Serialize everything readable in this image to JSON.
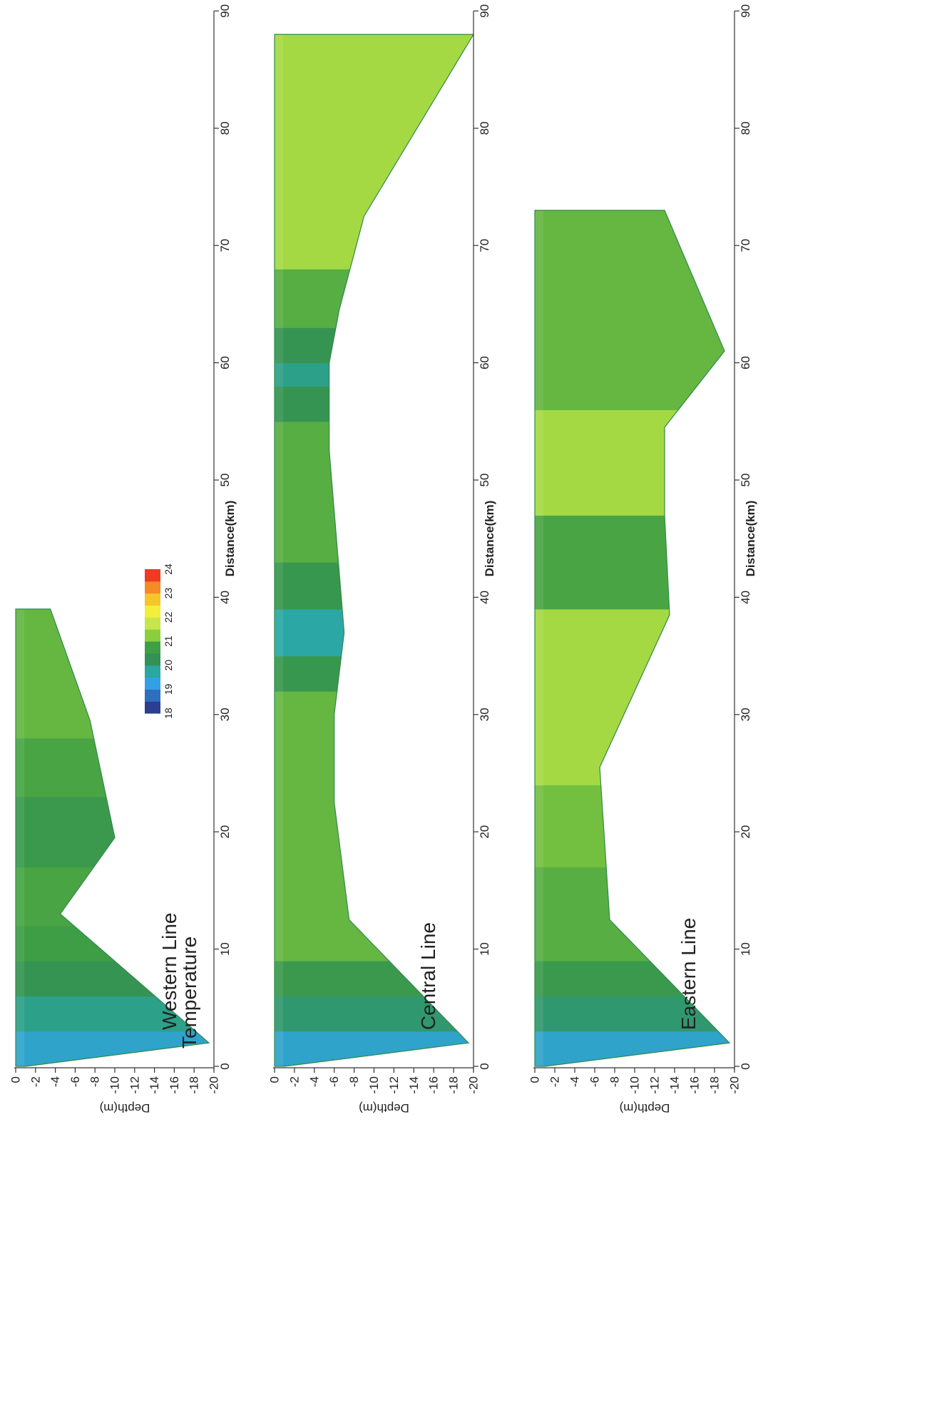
{
  "legend": {
    "title": "Temperature",
    "ticks": [
      18,
      19,
      20,
      21,
      22,
      23,
      24
    ],
    "colors": [
      "#2b3f8e",
      "#2f6fbf",
      "#33a0e6",
      "#2aa7a0",
      "#339155",
      "#3f9f45",
      "#8bcf3f",
      "#c7e64b",
      "#f2ef3a",
      "#f6c52a",
      "#f58a26",
      "#ee3b22"
    ]
  },
  "chart_data": [
    {
      "type": "heatmap",
      "title": "Western Line",
      "xlabel": "Distance(km)",
      "ylabel": "Depth(m)",
      "xlim": [
        0,
        90
      ],
      "ylim": [
        -20,
        0
      ],
      "xticks": [
        0,
        10,
        20,
        30,
        40,
        50,
        60,
        70,
        80,
        90
      ],
      "yticks": [
        0,
        -2,
        -4,
        -6,
        -8,
        -10,
        -12,
        -14,
        -16,
        -18,
        -20
      ],
      "bottom_profile": {
        "distance": [
          0,
          2,
          13,
          19.5,
          29.5,
          39
        ],
        "depth": [
          -1,
          -19.5,
          -4.5,
          -10,
          -7.5,
          -3.5
        ]
      },
      "bands": [
        {
          "from": 0,
          "to": 3,
          "temp": 19.3
        },
        {
          "from": 3,
          "to": 6,
          "temp": 19.8
        },
        {
          "from": 6,
          "to": 9,
          "temp": 20.3
        },
        {
          "from": 9,
          "to": 12,
          "temp": 20.7
        },
        {
          "from": 12,
          "to": 17,
          "temp": 20.8
        },
        {
          "from": 17,
          "to": 23,
          "temp": 20.5
        },
        {
          "from": 23,
          "to": 28,
          "temp": 20.8
        },
        {
          "from": 28,
          "to": 39,
          "temp": 21.0
        }
      ]
    },
    {
      "type": "heatmap",
      "title": "Central Line",
      "xlabel": "Distance(km)",
      "ylabel": "Depth(m)",
      "xlim": [
        0,
        90
      ],
      "ylim": [
        -20,
        0
      ],
      "xticks": [
        0,
        10,
        20,
        30,
        40,
        50,
        60,
        70,
        80,
        90
      ],
      "yticks": [
        0,
        -2,
        -4,
        -6,
        -8,
        -10,
        -12,
        -14,
        -16,
        -18,
        -20
      ],
      "bottom_profile": {
        "distance": [
          0,
          2,
          12.5,
          22.5,
          30,
          37,
          52.5,
          60,
          64.5,
          72.5,
          88
        ],
        "depth": [
          -1,
          -19.5,
          -7.5,
          -6,
          -6,
          -7,
          -5.5,
          -5.5,
          -6.5,
          -9,
          -20
        ]
      },
      "bands": [
        {
          "from": 0,
          "to": 3,
          "temp": 19.3
        },
        {
          "from": 3,
          "to": 6,
          "temp": 20.0
        },
        {
          "from": 6,
          "to": 9,
          "temp": 20.5
        },
        {
          "from": 9,
          "to": 32,
          "temp": 21.0
        },
        {
          "from": 32,
          "to": 35,
          "temp": 20.4
        },
        {
          "from": 35,
          "to": 39,
          "temp": 19.6
        },
        {
          "from": 39,
          "to": 43,
          "temp": 20.4
        },
        {
          "from": 43,
          "to": 55,
          "temp": 20.9
        },
        {
          "from": 55,
          "to": 58,
          "temp": 20.3
        },
        {
          "from": 58,
          "to": 60,
          "temp": 19.8
        },
        {
          "from": 60,
          "to": 63,
          "temp": 20.3
        },
        {
          "from": 63,
          "to": 68,
          "temp": 20.9
        },
        {
          "from": 68,
          "to": 88,
          "temp": 21.5
        }
      ]
    },
    {
      "type": "heatmap",
      "title": "Eastern Line",
      "xlabel": "Distance(km)",
      "ylabel": "Depth(m)",
      "xlim": [
        0,
        90
      ],
      "ylim": [
        -20,
        0
      ],
      "xticks": [
        0,
        10,
        20,
        30,
        40,
        50,
        60,
        70,
        80,
        90
      ],
      "yticks": [
        0,
        -2,
        -4,
        -6,
        -8,
        -10,
        -12,
        -14,
        -16,
        -18,
        -20
      ],
      "bottom_profile": {
        "distance": [
          0,
          2,
          12.5,
          25.5,
          38.5,
          47,
          54.5,
          61,
          73
        ],
        "depth": [
          -1,
          -19.5,
          -7.5,
          -6.5,
          -13.5,
          -13,
          -13,
          -19,
          -13
        ]
      },
      "bands": [
        {
          "from": 0,
          "to": 3,
          "temp": 19.3
        },
        {
          "from": 3,
          "to": 6,
          "temp": 20.0
        },
        {
          "from": 6,
          "to": 9,
          "temp": 20.5
        },
        {
          "from": 9,
          "to": 17,
          "temp": 20.9
        },
        {
          "from": 17,
          "to": 24,
          "temp": 21.1
        },
        {
          "from": 24,
          "to": 39,
          "temp": 21.5
        },
        {
          "from": 39,
          "to": 47,
          "temp": 20.8
        },
        {
          "from": 47,
          "to": 56,
          "temp": 21.5
        },
        {
          "from": 56,
          "to": 73,
          "temp": 21.0
        }
      ]
    }
  ]
}
